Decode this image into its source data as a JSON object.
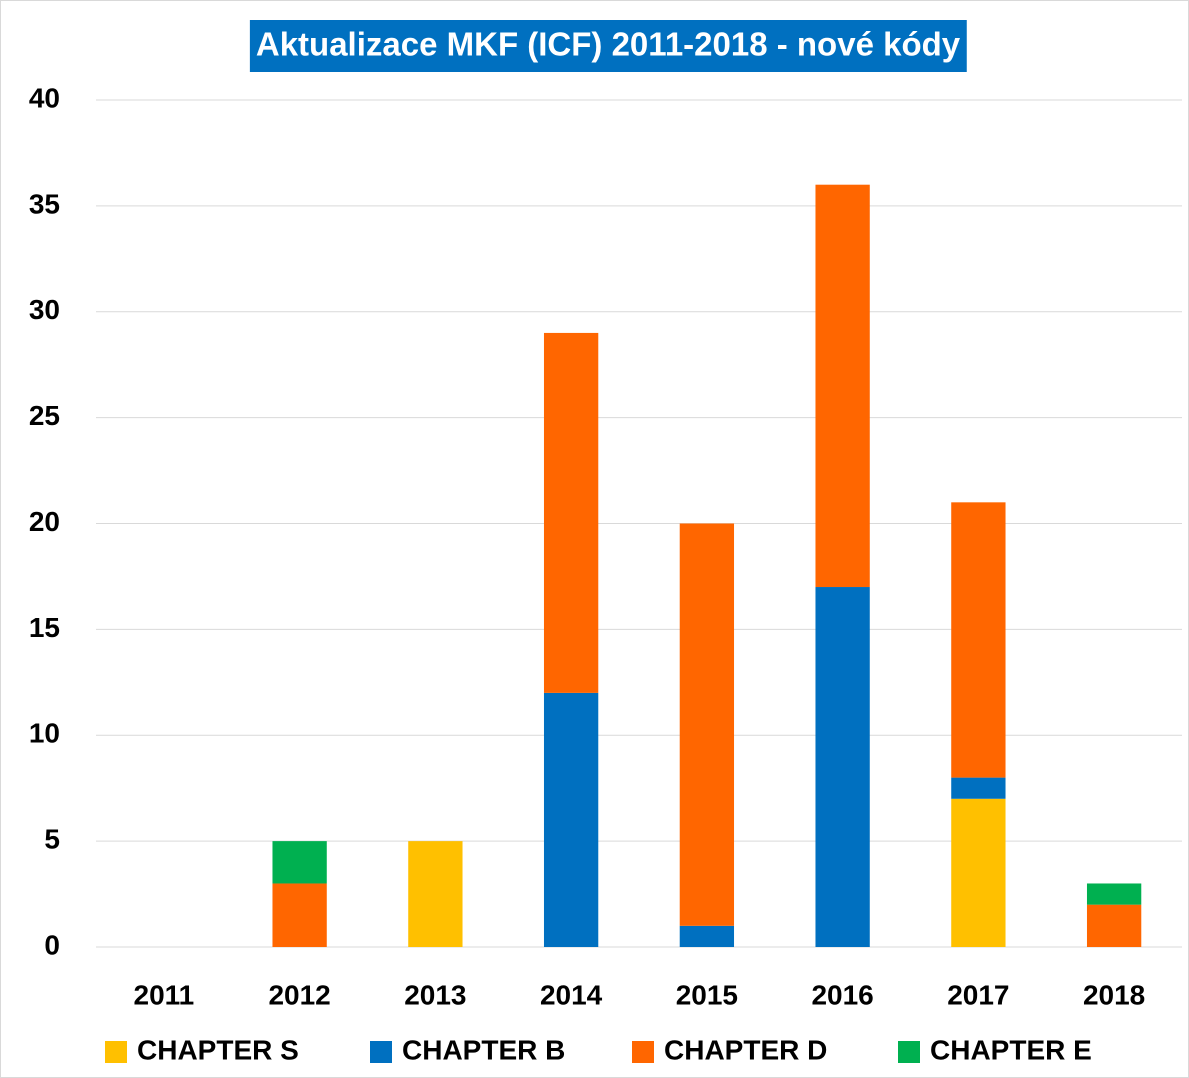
{
  "chart_data": {
    "type": "stacked_bar",
    "title": "Aktualizace MKF (ICF)  2011-2018 - nové kódy",
    "categories": [
      "2011",
      "2012",
      "2013",
      "2014",
      "2015",
      "2016",
      "2017",
      "2018"
    ],
    "series": [
      {
        "name": "CHAPTER S",
        "color": "#ffc000",
        "values": [
          0,
          0,
          5,
          0,
          0,
          0,
          7,
          0
        ]
      },
      {
        "name": "CHAPTER B",
        "color": "#0070c0",
        "values": [
          0,
          0,
          0,
          12,
          1,
          17,
          1,
          0
        ]
      },
      {
        "name": "CHAPTER D",
        "color": "#ff6600",
        "values": [
          0,
          3,
          0,
          17,
          19,
          19,
          13,
          2
        ]
      },
      {
        "name": "CHAPTER E",
        "color": "#00b050",
        "values": [
          0,
          2,
          0,
          0,
          0,
          0,
          0,
          1
        ]
      }
    ],
    "ylim": [
      0,
      40
    ],
    "yticks": [
      0,
      5,
      10,
      15,
      20,
      25,
      30,
      35,
      40
    ],
    "grid": true,
    "legend": "bottom"
  }
}
